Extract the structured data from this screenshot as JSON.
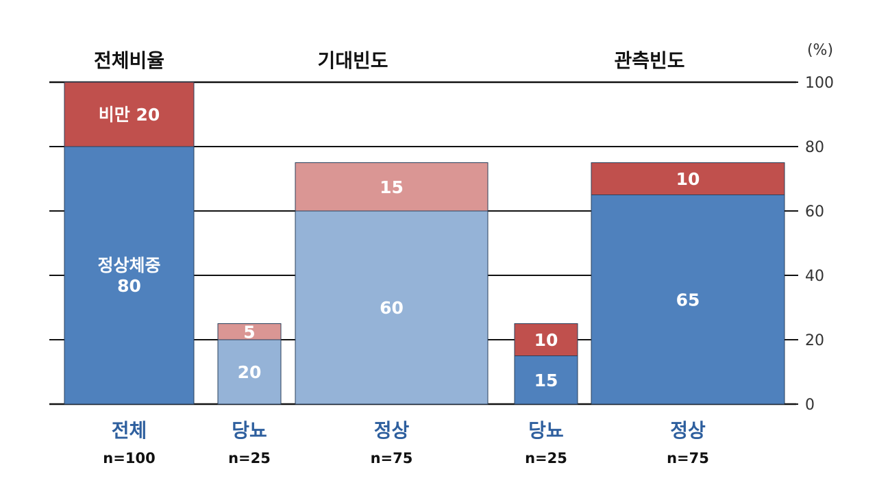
{
  "chart_data": {
    "type": "bar",
    "stacked": true,
    "variable_width": true,
    "unit": "(%)",
    "ylim": [
      0,
      100
    ],
    "yticks": [
      0,
      20,
      40,
      60,
      80,
      100
    ],
    "grid": true,
    "groups": [
      {
        "title": "전체비율",
        "bars": [
          0
        ]
      },
      {
        "title": "기대빈도",
        "bars": [
          1,
          2
        ]
      },
      {
        "title": "관측빈도",
        "bars": [
          3,
          4
        ]
      }
    ],
    "colors": {
      "obese_dark": "#c0504d",
      "normal_dark": "#4f81bd",
      "obese_light": "#da9694",
      "normal_light": "#95b3d7"
    },
    "bars": [
      {
        "category": "전체",
        "n_label": "n=100",
        "n": 100,
        "segments": [
          {
            "value": 80,
            "label_lines": [
              "정상체중",
              "80"
            ],
            "color": "normal_dark"
          },
          {
            "value": 20,
            "label_lines": [
              "비만 20"
            ],
            "color": "obese_dark"
          }
        ]
      },
      {
        "category": "당뇨",
        "n_label": "n=25",
        "n": 25,
        "segments": [
          {
            "value": 20,
            "label_lines": [
              "20"
            ],
            "color": "normal_light"
          },
          {
            "value": 5,
            "label_lines": [
              "5"
            ],
            "color": "obese_light"
          }
        ]
      },
      {
        "category": "정상",
        "n_label": "n=75",
        "n": 75,
        "segments": [
          {
            "value": 60,
            "label_lines": [
              "60"
            ],
            "color": "normal_light"
          },
          {
            "value": 15,
            "label_lines": [
              "15"
            ],
            "color": "obese_light"
          }
        ]
      },
      {
        "category": "당뇨",
        "n_label": "n=25",
        "n": 25,
        "segments": [
          {
            "value": 15,
            "label_lines": [
              "15"
            ],
            "color": "normal_dark"
          },
          {
            "value": 10,
            "label_lines": [
              "10"
            ],
            "color": "obese_dark"
          }
        ]
      },
      {
        "category": "정상",
        "n_label": "n=75",
        "n": 75,
        "segments": [
          {
            "value": 65,
            "label_lines": [
              "65"
            ],
            "color": "normal_dark"
          },
          {
            "value": 10,
            "label_lines": [
              "10"
            ],
            "color": "obese_dark"
          }
        ]
      }
    ]
  }
}
